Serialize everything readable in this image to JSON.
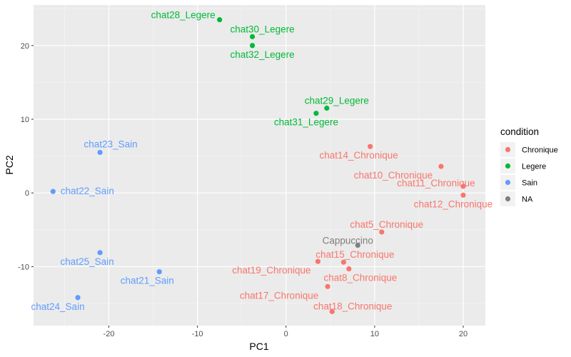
{
  "chart_data": {
    "type": "scatter",
    "xlabel": "PC1",
    "ylabel": "PC2",
    "xlim": [
      -28.5,
      22.5
    ],
    "ylim": [
      -18,
      25.5
    ],
    "x_ticks": [
      -20,
      -10,
      0,
      10,
      20
    ],
    "y_ticks": [
      -10,
      0,
      10,
      20
    ],
    "x_tick_labels": [
      "-20",
      "-10",
      "0",
      "10",
      "20"
    ],
    "y_tick_labels": [
      "-10",
      "0",
      "10",
      "20"
    ],
    "grid": true,
    "legend": {
      "title": "condition",
      "position": "right",
      "entries": [
        {
          "label": "Chronique",
          "color": "#F8766D"
        },
        {
          "label": "Legere",
          "color": "#00BA38"
        },
        {
          "label": "Sain",
          "color": "#619CFF"
        },
        {
          "label": "NA",
          "color": "#7F7F7F"
        }
      ]
    },
    "points": [
      {
        "label": "chat28_Legere",
        "condition": "Legere",
        "x": -7.5,
        "y": 23.5
      },
      {
        "label": "chat30_Legere",
        "condition": "Legere",
        "x": -3.8,
        "y": 21.2
      },
      {
        "label": "chat32_Legere",
        "condition": "Legere",
        "x": -3.8,
        "y": 20.0
      },
      {
        "label": "chat29_Legere",
        "condition": "Legere",
        "x": 4.6,
        "y": 11.5
      },
      {
        "label": "chat31_Legere",
        "condition": "Legere",
        "x": 3.4,
        "y": 10.8
      },
      {
        "label": "chat23_Sain",
        "condition": "Sain",
        "x": -21.0,
        "y": 5.5
      },
      {
        "label": "chat22_Sain",
        "condition": "Sain",
        "x": -26.3,
        "y": 0.2
      },
      {
        "label": "chat25_Sain",
        "condition": "Sain",
        "x": -21.0,
        "y": -8.1
      },
      {
        "label": "chat21_Sain",
        "condition": "Sain",
        "x": -14.3,
        "y": -10.7
      },
      {
        "label": "chat24_Sain",
        "condition": "Sain",
        "x": -23.5,
        "y": -14.2
      },
      {
        "label": "chat14_Chronique",
        "condition": "Chronique",
        "x": 9.5,
        "y": 6.3
      },
      {
        "label": "chat10_Chronique",
        "condition": "Chronique",
        "x": 17.5,
        "y": 3.6
      },
      {
        "label": "chat11_Chronique",
        "condition": "Chronique",
        "x": 20.0,
        "y": 0.9
      },
      {
        "label": "chat12_Chronique",
        "condition": "Chronique",
        "x": 20.0,
        "y": -0.3
      },
      {
        "label": "chat5_Chronique",
        "condition": "Chronique",
        "x": 10.8,
        "y": -5.3
      },
      {
        "label": "Cappuccino",
        "condition": "NA",
        "x": 8.1,
        "y": -7.1
      },
      {
        "label": "chat15_Chronique",
        "condition": "Chronique",
        "x": 6.5,
        "y": -9.4
      },
      {
        "label": "chat19_Chronique",
        "condition": "Chronique",
        "x": 3.6,
        "y": -9.3
      },
      {
        "label": "chat8_Chronique",
        "condition": "Chronique",
        "x": 7.1,
        "y": -10.3
      },
      {
        "label": "chat17_Chronique",
        "condition": "Chronique",
        "x": 4.7,
        "y": -12.7
      },
      {
        "label": "chat18_Chronique",
        "condition": "Chronique",
        "x": 5.2,
        "y": -16.1
      }
    ]
  }
}
